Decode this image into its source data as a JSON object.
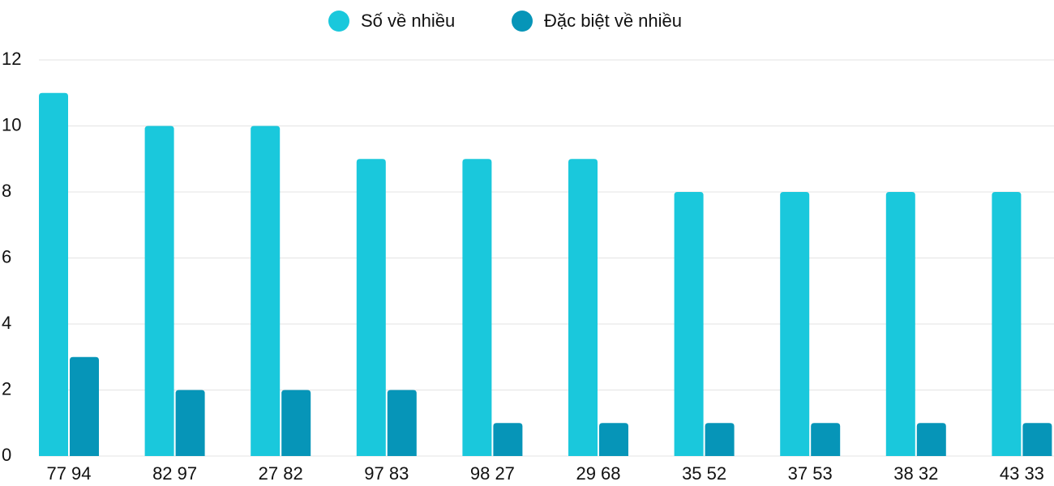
{
  "chart_data": {
    "type": "bar",
    "categories": [
      "77 94",
      "82 97",
      "27 82",
      "97 83",
      "98 27",
      "29 68",
      "35 52",
      "37 53",
      "38 32",
      "43 33"
    ],
    "series": [
      {
        "name": "Số về nhiều",
        "color": "#1ac8dc",
        "values": [
          11,
          10,
          10,
          9,
          9,
          9,
          8,
          8,
          8,
          8
        ]
      },
      {
        "name": "Đặc biệt về nhiều",
        "color": "#0695b8",
        "values": [
          3,
          2,
          2,
          2,
          1,
          1,
          1,
          1,
          1,
          1
        ]
      }
    ],
    "ylim": [
      0,
      12
    ],
    "yticks": [
      0,
      2,
      4,
      6,
      8,
      10,
      12
    ],
    "grid": true,
    "legend": "top"
  }
}
